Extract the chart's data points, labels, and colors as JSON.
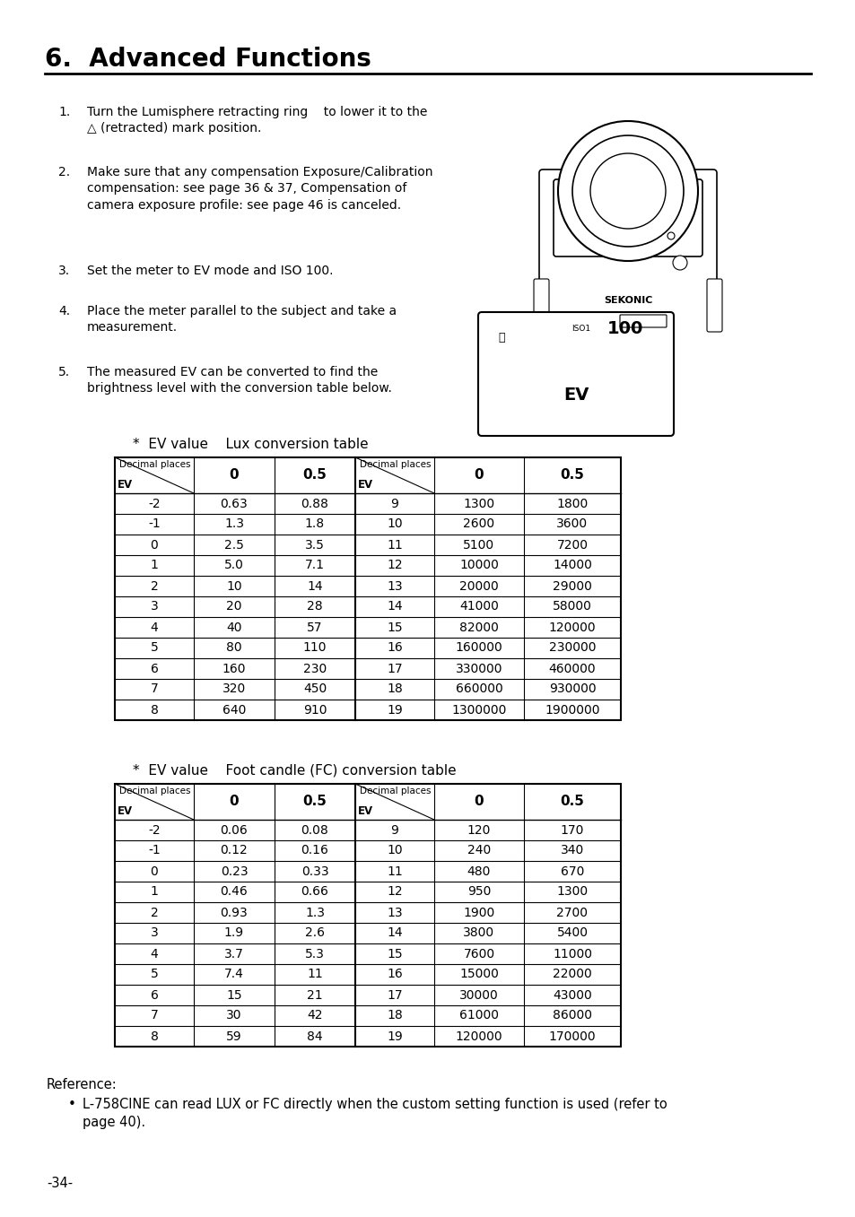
{
  "title": "6.  Advanced Functions",
  "page_number": "-34-",
  "body_text": [
    {
      "num": "1.",
      "text": "Turn the Lumisphere retracting ring    to lower it to the\n△ (retracted) mark position."
    },
    {
      "num": "2.",
      "text": "Make sure that any compensation Exposure/Calibration\ncompensation: see page 36 & 37, Compensation of\ncamera exposure profile: see page 46 is canceled."
    },
    {
      "num": "3.",
      "text": "Set the meter to EV mode and ISO 100."
    },
    {
      "num": "4.",
      "text": "Place the meter parallel to the subject and take a\nmeasurement."
    },
    {
      "num": "5.",
      "text": "The measured EV can be converted to find the\nbrightness level with the conversion table below."
    }
  ],
  "lux_table_title": "*  EV value    Lux conversion table",
  "fc_table_title": "*  EV value    Foot candle (FC) conversion table",
  "lux_left": [
    [
      "-2",
      "0.63",
      "0.88"
    ],
    [
      "-1",
      "1.3",
      "1.8"
    ],
    [
      "0",
      "2.5",
      "3.5"
    ],
    [
      "1",
      "5.0",
      "7.1"
    ],
    [
      "2",
      "10",
      "14"
    ],
    [
      "3",
      "20",
      "28"
    ],
    [
      "4",
      "40",
      "57"
    ],
    [
      "5",
      "80",
      "110"
    ],
    [
      "6",
      "160",
      "230"
    ],
    [
      "7",
      "320",
      "450"
    ],
    [
      "8",
      "640",
      "910"
    ]
  ],
  "lux_right": [
    [
      "9",
      "1300",
      "1800"
    ],
    [
      "10",
      "2600",
      "3600"
    ],
    [
      "11",
      "5100",
      "7200"
    ],
    [
      "12",
      "10000",
      "14000"
    ],
    [
      "13",
      "20000",
      "29000"
    ],
    [
      "14",
      "41000",
      "58000"
    ],
    [
      "15",
      "82000",
      "120000"
    ],
    [
      "16",
      "160000",
      "230000"
    ],
    [
      "17",
      "330000",
      "460000"
    ],
    [
      "18",
      "660000",
      "930000"
    ],
    [
      "19",
      "1300000",
      "1900000"
    ]
  ],
  "fc_left": [
    [
      "-2",
      "0.06",
      "0.08"
    ],
    [
      "-1",
      "0.12",
      "0.16"
    ],
    [
      "0",
      "0.23",
      "0.33"
    ],
    [
      "1",
      "0.46",
      "0.66"
    ],
    [
      "2",
      "0.93",
      "1.3"
    ],
    [
      "3",
      "1.9",
      "2.6"
    ],
    [
      "4",
      "3.7",
      "5.3"
    ],
    [
      "5",
      "7.4",
      "11"
    ],
    [
      "6",
      "15",
      "21"
    ],
    [
      "7",
      "30",
      "42"
    ],
    [
      "8",
      "59",
      "84"
    ]
  ],
  "fc_right": [
    [
      "9",
      "120",
      "170"
    ],
    [
      "10",
      "240",
      "340"
    ],
    [
      "11",
      "480",
      "670"
    ],
    [
      "12",
      "950",
      "1300"
    ],
    [
      "13",
      "1900",
      "2700"
    ],
    [
      "14",
      "3800",
      "5400"
    ],
    [
      "15",
      "7600",
      "11000"
    ],
    [
      "16",
      "15000",
      "22000"
    ],
    [
      "17",
      "30000",
      "43000"
    ],
    [
      "18",
      "61000",
      "86000"
    ],
    [
      "19",
      "120000",
      "170000"
    ]
  ],
  "reference_text": "Reference:",
  "reference_bullet": "L-758CINE can read LUX or FC directly when the custom setting function is used (refer to\npage 40).",
  "background_color": "#ffffff",
  "text_color": "#000000"
}
